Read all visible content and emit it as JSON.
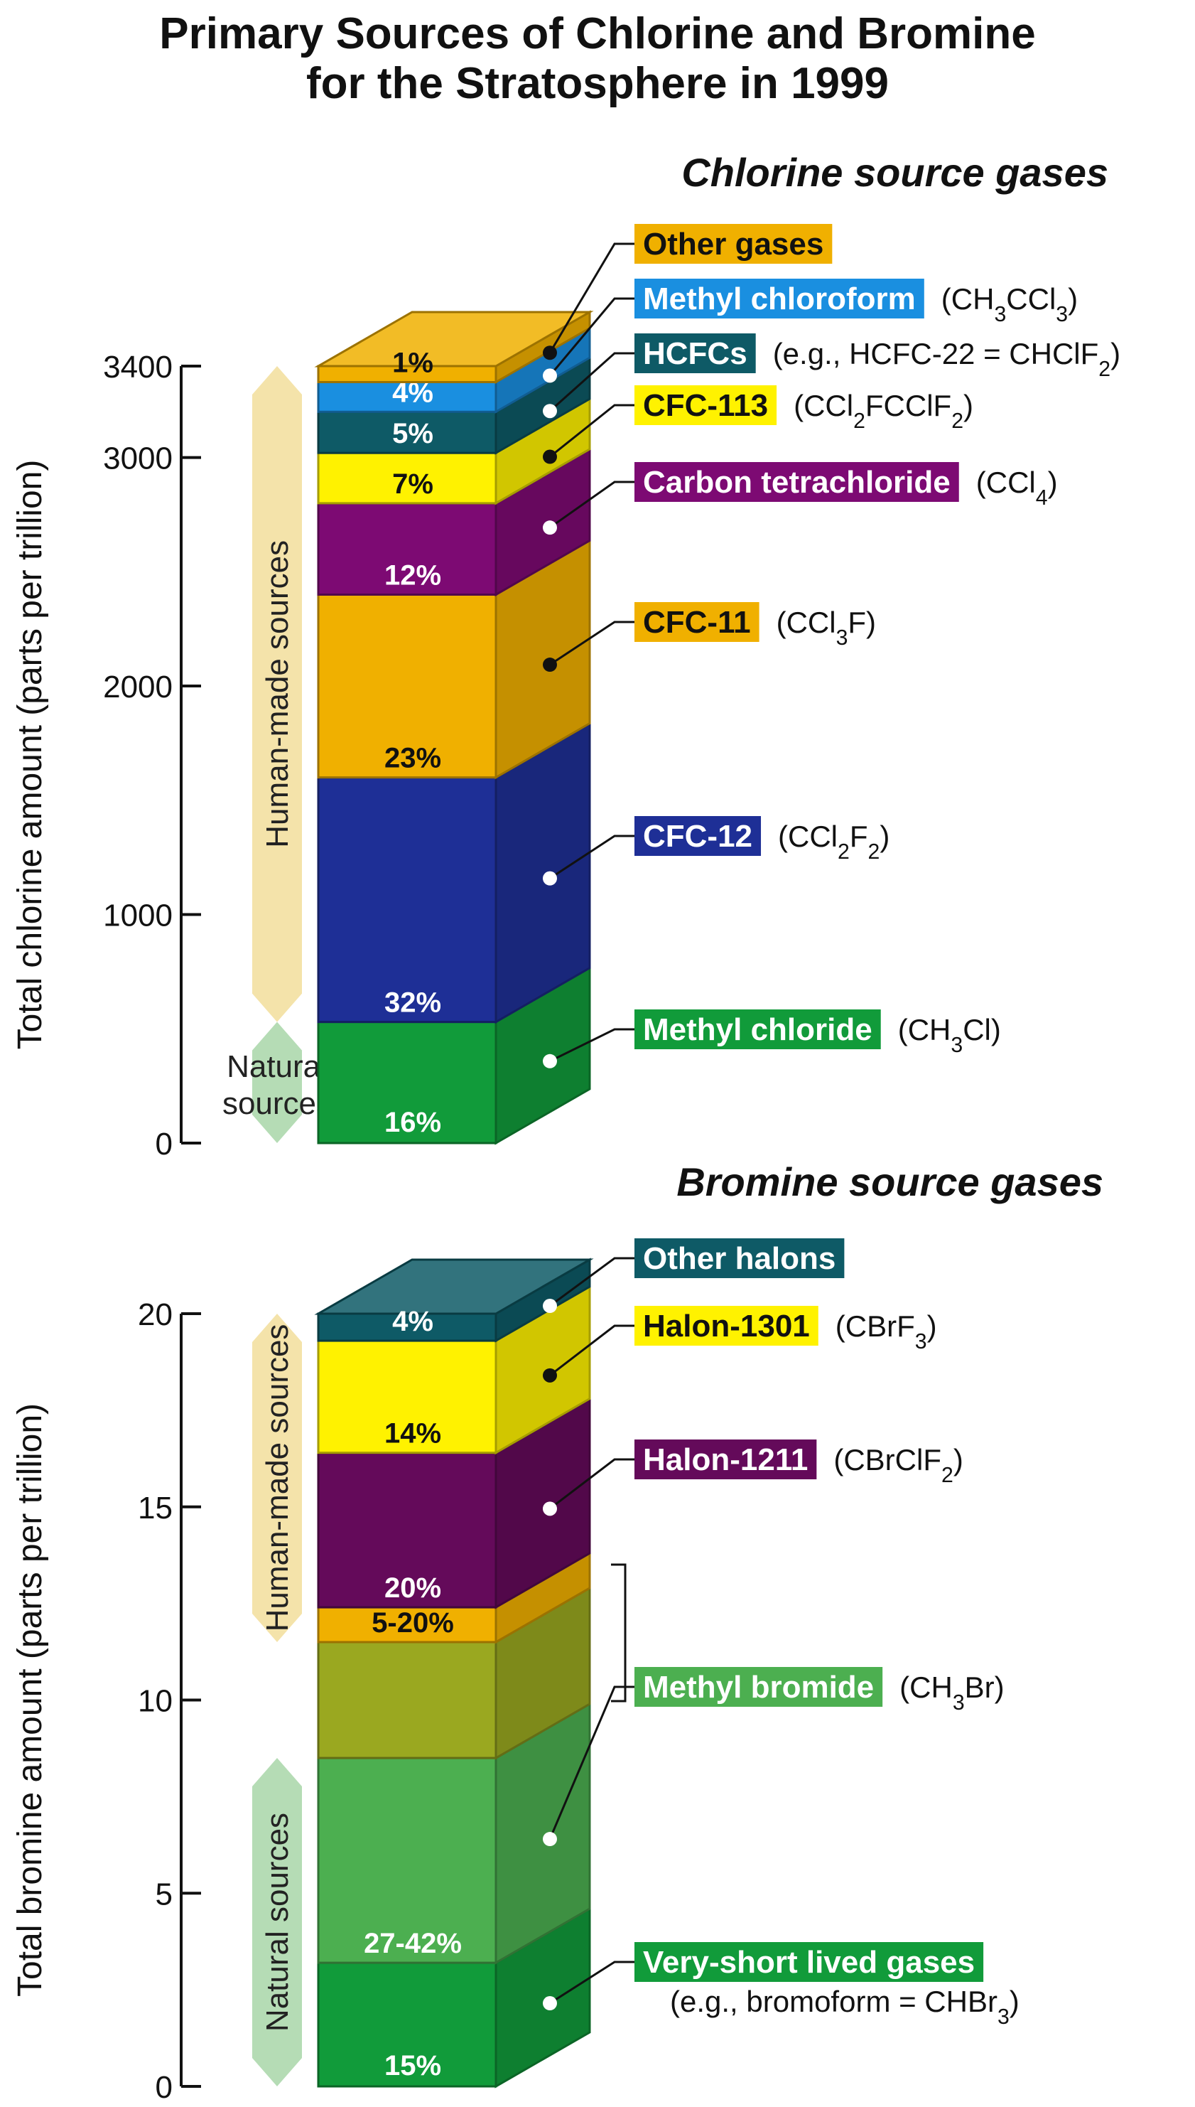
{
  "title": [
    "Primary Sources of Chlorine and Bromine",
    "for the Stratosphere in 1999"
  ],
  "chart_data": [
    {
      "type": "bar",
      "stacked": true,
      "title": "Chlorine source gases",
      "ylabel": "Total chlorine amount (parts per trillion)",
      "ylim": [
        0,
        3400
      ],
      "yticks": [
        0,
        1000,
        2000,
        3000,
        3400
      ],
      "source_bands": [
        {
          "label": "Human-made sources",
          "from": 530,
          "to": 3400,
          "color": "#f4e3aa"
        },
        {
          "label": "Natural sources",
          "from": 0,
          "to": 530,
          "color": "#b5dcb5"
        }
      ],
      "segments": [
        {
          "name": "Methyl chloride",
          "formula": "(CH<sub>3</sub>Cl)",
          "percent_label": "16%",
          "from": 0,
          "to": 530,
          "color": "#119b3a",
          "text_color": "#ffffff",
          "label_color": "#ffffff"
        },
        {
          "name": "CFC-12",
          "formula": "(CCl<sub>2</sub>F<sub>2</sub>)",
          "percent_label": "32%",
          "from": 530,
          "to": 1600,
          "color": "#1e2f96",
          "text_color": "#ffffff",
          "label_color": "#ffffff"
        },
        {
          "name": "CFC-11",
          "formula": "(CCl<sub>3</sub>F)",
          "percent_label": "23%",
          "from": 1600,
          "to": 2400,
          "color": "#f0b000",
          "text_color": "#111111",
          "label_color": "#111111"
        },
        {
          "name": "Carbon tetrachloride",
          "formula": "(CCl<sub>4</sub>)",
          "percent_label": "12%",
          "from": 2400,
          "to": 2800,
          "color": "#7d0a73",
          "text_color": "#ffffff",
          "label_color": "#ffffff"
        },
        {
          "name": "CFC-113",
          "formula": "(CCl<sub>2</sub>FCClF<sub>2</sub>)",
          "percent_label": "7%",
          "from": 2800,
          "to": 3020,
          "color": "#fff200",
          "text_color": "#111111",
          "label_color": "#111111"
        },
        {
          "name": "HCFCs",
          "formula": "(e.g., HCFC-22 = CHClF<sub>2</sub>)",
          "percent_label": "5%",
          "from": 3020,
          "to": 3200,
          "color": "#0e5a66",
          "text_color": "#ffffff",
          "label_color": "#ffffff"
        },
        {
          "name": "Methyl chloroform",
          "formula": "(CH<sub>3</sub>CCl<sub>3</sub>)",
          "percent_label": "4%",
          "from": 3200,
          "to": 3330,
          "color": "#1a8fe0",
          "text_color": "#ffffff",
          "label_color": "#ffffff"
        },
        {
          "name": "Other gases",
          "formula": "",
          "percent_label": "1%",
          "from": 3330,
          "to": 3400,
          "color": "#f0b000",
          "text_color": "#111111",
          "label_color": "#111111"
        }
      ]
    },
    {
      "type": "bar",
      "stacked": true,
      "title": "Bromine source gases",
      "ylabel": "Total bromine amount (parts per trillion)",
      "ylim": [
        0,
        20
      ],
      "yticks": [
        0,
        5,
        10,
        15,
        20
      ],
      "source_bands": [
        {
          "label": "Human-made sources",
          "from": 11.5,
          "to": 20,
          "color": "#f4e3aa"
        },
        {
          "label": "Natural sources",
          "from": 0,
          "to": 8.5,
          "color": "#b5dcb5"
        }
      ],
      "segments": [
        {
          "name": "Very-short lived gases",
          "formula": "(e.g., bromoform = CHBr<sub>3</sub>)",
          "percent_label": "15%",
          "from": 0,
          "to": 3.2,
          "color": "#119b3a",
          "text_color": "#ffffff",
          "label_color": "#ffffff"
        },
        {
          "name": "Methyl bromide",
          "formula": "(CH<sub>3</sub>Br)",
          "percent_label": "27-42%",
          "from": 3.2,
          "to": 8.5,
          "color": "#4caf50",
          "text_color": "#ffffff",
          "label_color": "#ffffff"
        },
        {
          "name": "Methyl bromide",
          "formula": "",
          "percent_label": "",
          "from": 8.5,
          "to": 11.5,
          "color": "#9aa820",
          "text_color": "#111111",
          "label_color": "#111111"
        },
        {
          "name": "Methyl bromide",
          "formula": "",
          "percent_label": "5-20%",
          "from": 11.5,
          "to": 12.4,
          "color": "#f0b000",
          "text_color": "#111111",
          "label_color": "#111111"
        },
        {
          "name": "Halon-1211",
          "formula": "(CBrClF<sub>2</sub>)",
          "percent_label": "20%",
          "from": 12.4,
          "to": 16.4,
          "color": "#640a5a",
          "text_color": "#ffffff",
          "label_color": "#ffffff"
        },
        {
          "name": "Halon-1301",
          "formula": "(CBrF<sub>3</sub>)",
          "percent_label": "14%",
          "from": 16.4,
          "to": 19.3,
          "color": "#fff200",
          "text_color": "#111111",
          "label_color": "#111111"
        },
        {
          "name": "Other halons",
          "formula": "",
          "percent_label": "4%",
          "from": 19.3,
          "to": 20,
          "color": "#0e5a66",
          "text_color": "#ffffff",
          "label_color": "#ffffff"
        }
      ]
    }
  ]
}
